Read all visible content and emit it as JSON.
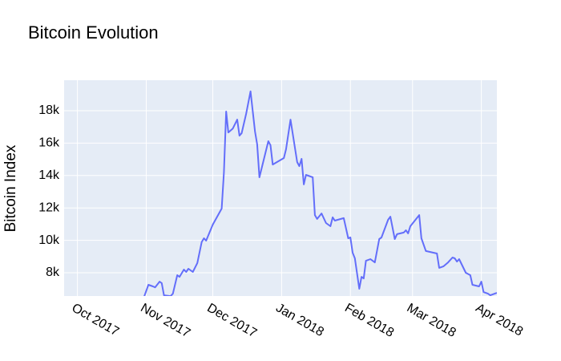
{
  "chart_data": {
    "type": "line",
    "title": "Bitcoin Evolution",
    "y_label": "Bitcoin Index",
    "x": [
      "2017-10-31",
      "2017-11-02",
      "2017-11-04",
      "2017-11-05",
      "2017-11-07",
      "2017-11-08",
      "2017-11-09",
      "2017-11-12",
      "2017-11-13",
      "2017-11-15",
      "2017-11-16",
      "2017-11-18",
      "2017-11-19",
      "2017-11-20",
      "2017-11-22",
      "2017-11-24",
      "2017-11-26",
      "2017-11-27",
      "2017-11-28",
      "2017-12-01",
      "2017-12-05",
      "2017-12-06",
      "2017-12-07",
      "2017-12-08",
      "2017-12-10",
      "2017-12-12",
      "2017-12-13",
      "2017-12-14",
      "2017-12-16",
      "2017-12-18",
      "2017-12-20",
      "2017-12-21",
      "2017-12-22",
      "2017-12-26",
      "2017-12-27",
      "2017-12-28",
      "2018-01-02",
      "2018-01-03",
      "2018-01-05",
      "2018-01-08",
      "2018-01-09",
      "2018-01-10",
      "2018-01-11",
      "2018-01-12",
      "2018-01-15",
      "2018-01-16",
      "2018-01-17",
      "2018-01-19",
      "2018-01-21",
      "2018-01-23",
      "2018-01-24",
      "2018-01-25",
      "2018-01-29",
      "2018-01-31",
      "2018-02-01",
      "2018-02-02",
      "2018-02-03",
      "2018-02-05",
      "2018-02-06",
      "2018-02-07",
      "2018-02-08",
      "2018-02-10",
      "2018-02-12",
      "2018-02-14",
      "2018-02-15",
      "2018-02-18",
      "2018-02-19",
      "2018-02-21",
      "2018-02-22",
      "2018-02-25",
      "2018-02-26",
      "2018-02-27",
      "2018-02-28",
      "2018-03-04",
      "2018-03-05",
      "2018-03-07",
      "2018-03-12",
      "2018-03-13",
      "2018-03-15",
      "2018-03-17",
      "2018-03-19",
      "2018-03-20",
      "2018-03-21",
      "2018-03-22",
      "2018-03-25",
      "2018-03-27",
      "2018-03-28",
      "2018-03-31",
      "2018-04-01",
      "2018-04-02",
      "2018-04-04",
      "2018-04-05",
      "2018-04-08"
    ],
    "values": [
      6500,
      7260,
      7160,
      7100,
      7450,
      7360,
      6610,
      6560,
      6710,
      7850,
      7750,
      8200,
      8050,
      8250,
      8050,
      8600,
      9900,
      10130,
      9980,
      10970,
      11960,
      14190,
      17950,
      16660,
      16900,
      17450,
      16460,
      16610,
      17800,
      19190,
      16710,
      15920,
      13890,
      16120,
      15870,
      14680,
      15080,
      15620,
      17450,
      14830,
      14580,
      15030,
      13450,
      14040,
      13890,
      11560,
      11320,
      11660,
      11070,
      10870,
      11420,
      11220,
      11370,
      10130,
      10180,
      9240,
      8890,
      7010,
      7750,
      7650,
      8740,
      8840,
      8640,
      10080,
      10180,
      11270,
      11460,
      10080,
      10380,
      10480,
      10620,
      10430,
      10870,
      11560,
      10130,
      9340,
      9190,
      8300,
      8400,
      8640,
      8940,
      8890,
      8690,
      8840,
      8000,
      7850,
      7260,
      7160,
      7450,
      6810,
      6710,
      6610,
      6760
    ],
    "color": "#636efa",
    "xlim": [
      "2017-09-25",
      "2018-04-08"
    ],
    "xticks": [
      {
        "value": "2017-10-01",
        "label": "Oct 2017"
      },
      {
        "value": "2017-11-01",
        "label": "Nov 2017"
      },
      {
        "value": "2017-12-01",
        "label": "Dec 2017"
      },
      {
        "value": "2018-01-01",
        "label": "Jan 2018"
      },
      {
        "value": "2018-02-01",
        "label": "Feb 2018"
      },
      {
        "value": "2018-03-01",
        "label": "Mar 2018"
      },
      {
        "value": "2018-04-01",
        "label": "Apr 2018"
      }
    ],
    "ylim": [
      6565,
      19880
    ],
    "yticks": [
      {
        "value": 8000,
        "label": "8k"
      },
      {
        "value": 10000,
        "label": "10k"
      },
      {
        "value": 12000,
        "label": "12k"
      },
      {
        "value": 14000,
        "label": "14k"
      },
      {
        "value": 16000,
        "label": "16k"
      },
      {
        "value": 18000,
        "label": "18k"
      }
    ],
    "grid": true
  }
}
